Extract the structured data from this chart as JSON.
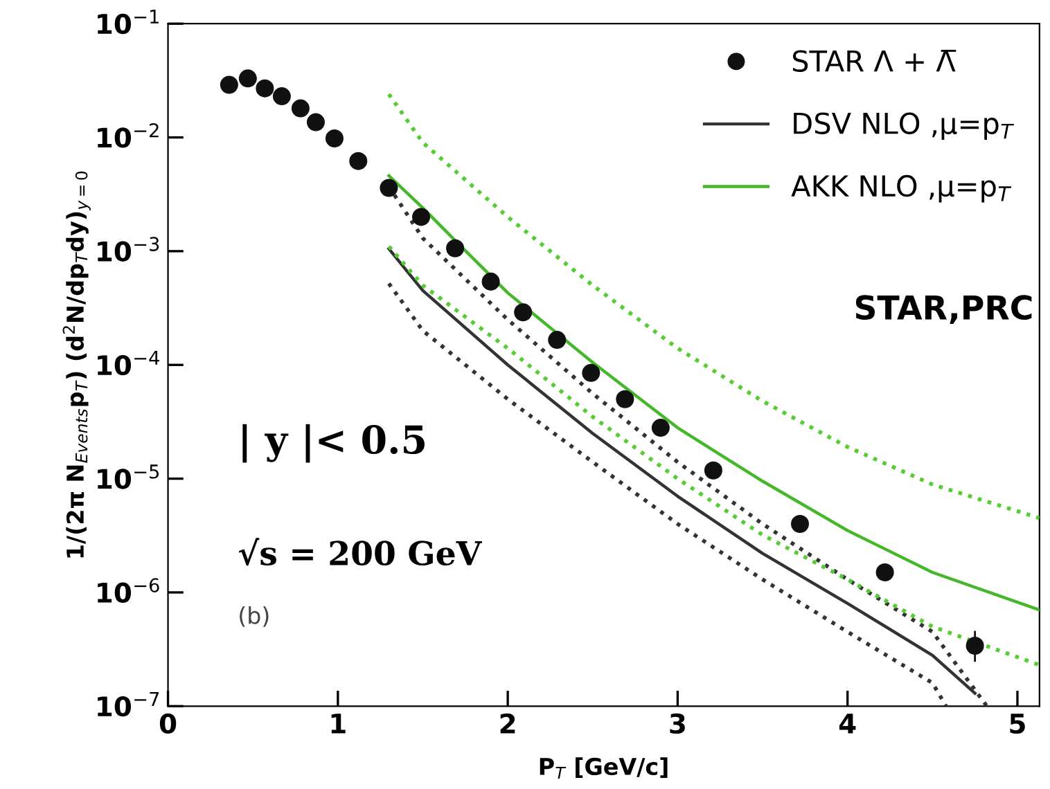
{
  "chart_data": {
    "type": "scatter",
    "xlabel": "P$_{T}$ [GeV/c]",
    "ylabel": "1/(2π N$_{Events}$p$_{T}$) (d$^{2}$N/dp$_{T}$dy)$_{y=0}$",
    "log": "y",
    "xlim": [
      0,
      5.13
    ],
    "ylim": [
      1e-07,
      0.1
    ],
    "xticks": [
      0,
      1,
      2,
      3,
      4,
      5
    ],
    "yticks": [
      {
        "value": 1e-07,
        "label": "10$^{−7}$"
      },
      {
        "value": 1e-06,
        "label": "10$^{−6}$"
      },
      {
        "value": 1e-05,
        "label": "10$^{−5}$"
      },
      {
        "value": 0.0001,
        "label": "10$^{−4}$"
      },
      {
        "value": 0.001,
        "label": "10$^{−3}$"
      },
      {
        "value": 0.01,
        "label": "10$^{−2}$"
      },
      {
        "value": 0.1,
        "label": "10$^{−1}$"
      }
    ],
    "grid": false,
    "legend": "top right",
    "series": [
      {
        "name": "STAR Λ + Λ̅",
        "marker": "circle",
        "color": "#111111",
        "x": [
          0.36,
          0.47,
          0.57,
          0.67,
          0.78,
          0.87,
          0.98,
          1.12,
          1.3,
          1.49,
          1.69,
          1.9,
          2.09,
          2.29,
          2.49,
          2.69,
          2.9,
          3.21,
          3.72,
          4.22,
          4.75
        ],
        "values": [
          0.029,
          0.033,
          0.027,
          0.023,
          0.018,
          0.0136,
          0.0098,
          0.0062,
          0.0036,
          0.002,
          0.00106,
          0.00054,
          0.00029,
          0.000166,
          8.5e-05,
          5e-05,
          2.8e-05,
          1.18e-05,
          4e-06,
          1.5e-06,
          3.4e-07
        ],
        "errors": [
          null,
          null,
          null,
          null,
          null,
          null,
          null,
          null,
          null,
          null,
          null,
          null,
          null,
          null,
          null,
          null,
          null,
          null,
          null,
          null,
          [
            2.5e-07,
            4.5e-07
          ]
        ]
      },
      {
        "name": "DSV NLO ,μ=p$_{T}$",
        "type": "line",
        "line_style": "solid",
        "color": "#333333",
        "x": [
          1.3,
          1.5,
          2,
          2.5,
          3,
          3.5,
          4,
          4.5,
          4.75
        ],
        "values": [
          0.00105,
          0.00045,
          0.0001,
          2.5e-05,
          7e-06,
          2.2e-06,
          8e-07,
          2.8e-07,
          1.3e-07
        ]
      },
      {
        "name": "AKK NLO ,μ=p$_{T}$",
        "type": "line",
        "line_style": "solid",
        "color": "#44b82a",
        "x": [
          1.3,
          1.5,
          1.7,
          2,
          2.5,
          3,
          3.5,
          4,
          4.5,
          5.13
        ],
        "values": [
          0.0046,
          0.0024,
          0.0012,
          0.00043,
          0.000105,
          2.8e-05,
          9.5e-06,
          3.5e-06,
          1.5e-06,
          7e-07
        ]
      },
      {
        "type": "line",
        "line_style": "dotted",
        "color": "#333333",
        "x": [
          1.3,
          1.5,
          2,
          2.5,
          3,
          3.5,
          4,
          4.5,
          4.82
        ],
        "values": [
          0.0037,
          0.0013,
          0.00025,
          5.6e-05,
          1.4e-05,
          4e-06,
          1.3e-06,
          4.5e-07,
          1e-07
        ]
      },
      {
        "type": "line",
        "line_style": "dotted",
        "color": "#333333",
        "x": [
          1.3,
          1.5,
          2,
          2.5,
          3,
          3.5,
          4,
          4.5,
          4.58
        ],
        "values": [
          0.00052,
          0.0002,
          5e-05,
          1.4e-05,
          4e-06,
          1.3e-06,
          4.5e-07,
          1.6e-07,
          1e-07
        ]
      },
      {
        "type": "line",
        "line_style": "dotted",
        "color": "#55cc33",
        "x": [
          1.3,
          1.5,
          2,
          2.5,
          3,
          3.5,
          4,
          4.5,
          5.13
        ],
        "values": [
          0.024,
          0.009,
          0.002,
          0.0005,
          0.00014,
          4.8e-05,
          1.9e-05,
          8.9e-06,
          4.5e-06
        ]
      },
      {
        "type": "line",
        "line_style": "dotted",
        "color": "#55cc33",
        "x": [
          1.3,
          1.5,
          2,
          2.5,
          3,
          3.5,
          4,
          4.5,
          5.13
        ],
        "values": [
          0.0011,
          0.0005,
          0.00014,
          3.5e-05,
          1e-05,
          3.2e-06,
          1.3e-06,
          5e-07,
          2.3e-07
        ]
      }
    ],
    "annotations": [
      "STAR,PRC",
      "| y |< 0.5",
      "√s = 200 GeV",
      "(b)"
    ]
  }
}
